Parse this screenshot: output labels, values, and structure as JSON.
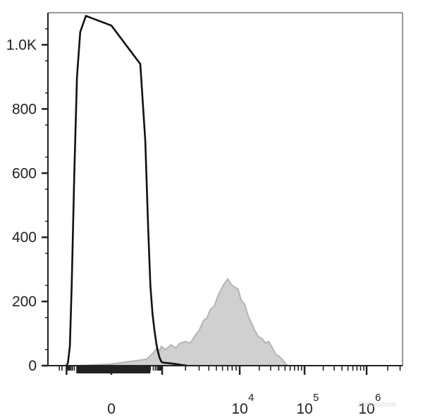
{
  "chart_data": {
    "type": "area",
    "title": "",
    "xlabel": "",
    "ylabel": "",
    "x_scale": "biexponential",
    "xlim": [
      -2000,
      2000000
    ],
    "ylim": [
      0,
      1100
    ],
    "grid": false,
    "y_ticks": [
      {
        "value": 0,
        "label": "0"
      },
      {
        "value": 200,
        "label": "200"
      },
      {
        "value": 400,
        "label": "400"
      },
      {
        "value": 600,
        "label": "600"
      },
      {
        "value": 800,
        "label": "800"
      },
      {
        "value": 1000,
        "label": "1.0K"
      }
    ],
    "x_ticks": [
      {
        "value": 0,
        "base": "0",
        "exp": ""
      },
      {
        "value": 10000,
        "base": "10",
        "exp": "4"
      },
      {
        "value": 100000,
        "base": "10",
        "exp": "5"
      },
      {
        "value": 1000000,
        "base": "10",
        "exp": "6"
      }
    ],
    "series": [
      {
        "style": "filled",
        "color": "#d0d0d0",
        "stroke": "#b4b4b4",
        "x": [
          -150,
          0,
          120,
          300,
          500,
          700,
          900,
          1100,
          1300,
          1500,
          1700,
          2000,
          2300,
          2600,
          3000,
          3400,
          3800,
          4200,
          4700,
          5200,
          5700,
          6300,
          7000,
          7700,
          8500,
          9500,
          10500,
          12000,
          13500,
          15000,
          17000,
          19500,
          22000,
          25000,
          28000,
          32000,
          36000,
          40000,
          45000,
          50000,
          55000
        ],
        "y": [
          0,
          5,
          20,
          40,
          55,
          45,
          60,
          50,
          65,
          55,
          70,
          75,
          70,
          90,
          110,
          140,
          150,
          175,
          185,
          215,
          235,
          255,
          270,
          255,
          245,
          240,
          205,
          190,
          155,
          135,
          110,
          90,
          85,
          70,
          75,
          55,
          35,
          30,
          20,
          8,
          0
        ]
      },
      {
        "style": "line",
        "color": "#111111",
        "x": [
          -1000,
          -800,
          -600,
          -450,
          -300,
          -200,
          -120,
          -50,
          0,
          50,
          100,
          150,
          200,
          270,
          350,
          450,
          550,
          700,
          850,
          1000,
          1200,
          1500,
          1800,
          2100
        ],
        "y": [
          0,
          10,
          60,
          250,
          600,
          900,
          1040,
          1090,
          1060,
          940,
          700,
          420,
          250,
          160,
          110,
          70,
          45,
          25,
          15,
          10,
          8,
          5,
          2,
          0
        ]
      }
    ]
  },
  "watermark": "Elabscience"
}
